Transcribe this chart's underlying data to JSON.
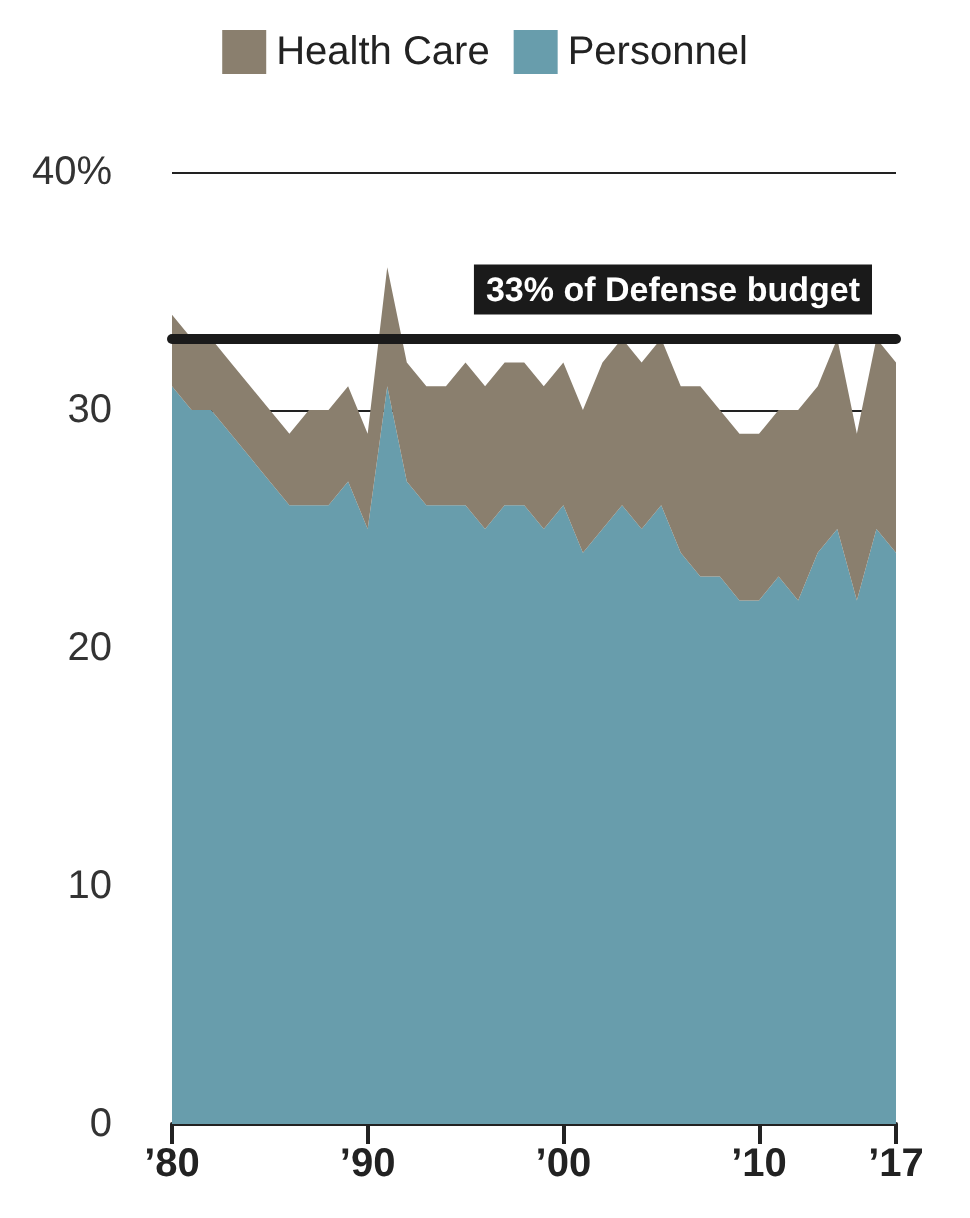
{
  "chart_data": {
    "type": "area",
    "stacked": true,
    "x": [
      1980,
      1981,
      1982,
      1983,
      1984,
      1985,
      1986,
      1987,
      1988,
      1989,
      1990,
      1991,
      1992,
      1993,
      1994,
      1995,
      1996,
      1997,
      1998,
      1999,
      2000,
      2001,
      2002,
      2003,
      2004,
      2005,
      2006,
      2007,
      2008,
      2009,
      2010,
      2011,
      2012,
      2013,
      2014,
      2015,
      2016,
      2017
    ],
    "series": [
      {
        "name": "Personnel",
        "color": "#689dac",
        "values": [
          31,
          30,
          30,
          29,
          28,
          27,
          26,
          26,
          26,
          27,
          25,
          31,
          27,
          26,
          26,
          26,
          25,
          26,
          26,
          25,
          26,
          24,
          25,
          26,
          25,
          26,
          24,
          23,
          23,
          22,
          22,
          23,
          22,
          24,
          25,
          22,
          25,
          24
        ]
      },
      {
        "name": "Health Care",
        "color": "#8a7f6e",
        "values": [
          3,
          3,
          3,
          3,
          3,
          3,
          3,
          4,
          4,
          4,
          4,
          5,
          5,
          5,
          5,
          6,
          6,
          6,
          6,
          6,
          6,
          6,
          7,
          7,
          7,
          7,
          7,
          8,
          7,
          7,
          7,
          7,
          8,
          7,
          8,
          7,
          8,
          8
        ]
      }
    ],
    "xlim": [
      1980,
      2017
    ],
    "xticks": [
      {
        "value": 1980,
        "label": "’80"
      },
      {
        "value": 1990,
        "label": "’90"
      },
      {
        "value": 2000,
        "label": "’00"
      },
      {
        "value": 2010,
        "label": "’10"
      },
      {
        "value": 2017,
        "label": "’17"
      }
    ],
    "ylim": [
      0,
      40
    ],
    "yticks": [
      0,
      10,
      20,
      30,
      {
        "value": 40,
        "label": "40%"
      }
    ],
    "grid": "y",
    "legend": "top",
    "ref_lines": [
      {
        "axis": "y",
        "value": 33,
        "label": "33% of Defense budget",
        "color": "#1a1a1a"
      }
    ]
  }
}
